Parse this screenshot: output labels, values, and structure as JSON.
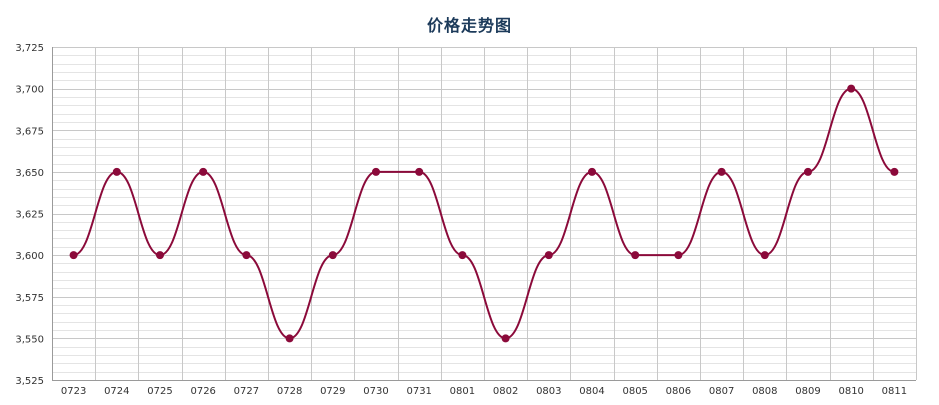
{
  "chart_data": {
    "type": "line",
    "title": "价格走势图",
    "xlabel": "",
    "ylabel": "",
    "categories": [
      "0723",
      "0724",
      "0725",
      "0726",
      "0727",
      "0728",
      "0729",
      "0730",
      "0731",
      "0801",
      "0802",
      "0803",
      "0804",
      "0805",
      "0806",
      "0807",
      "0808",
      "0809",
      "0810",
      "0811"
    ],
    "series": [
      {
        "values": [
          3600,
          3650,
          3600,
          3650,
          3600,
          3550,
          3600,
          3650,
          3650,
          3600,
          3550,
          3600,
          3650,
          3600,
          3600,
          3650,
          3600,
          3650,
          3700,
          3650
        ]
      }
    ],
    "ylim": [
      3525,
      3725
    ],
    "yticks": [
      3525,
      3550,
      3575,
      3600,
      3625,
      3650,
      3675,
      3700,
      3725
    ],
    "ytick_labels": [
      "3,525",
      "3,550",
      "3,575",
      "3,600",
      "3,625",
      "3,650",
      "3,675",
      "3,700",
      "3,725"
    ],
    "minor_y_step": 5,
    "grid": true,
    "legend": "none",
    "smooth": true,
    "colors": {
      "line": "#8b0a3a",
      "marker": "#8b0a3a",
      "grid_major": "#c8c8c8",
      "grid_minor": "#e4e4e4",
      "title": "#1c3a5a",
      "axis_text": "#333333"
    }
  }
}
